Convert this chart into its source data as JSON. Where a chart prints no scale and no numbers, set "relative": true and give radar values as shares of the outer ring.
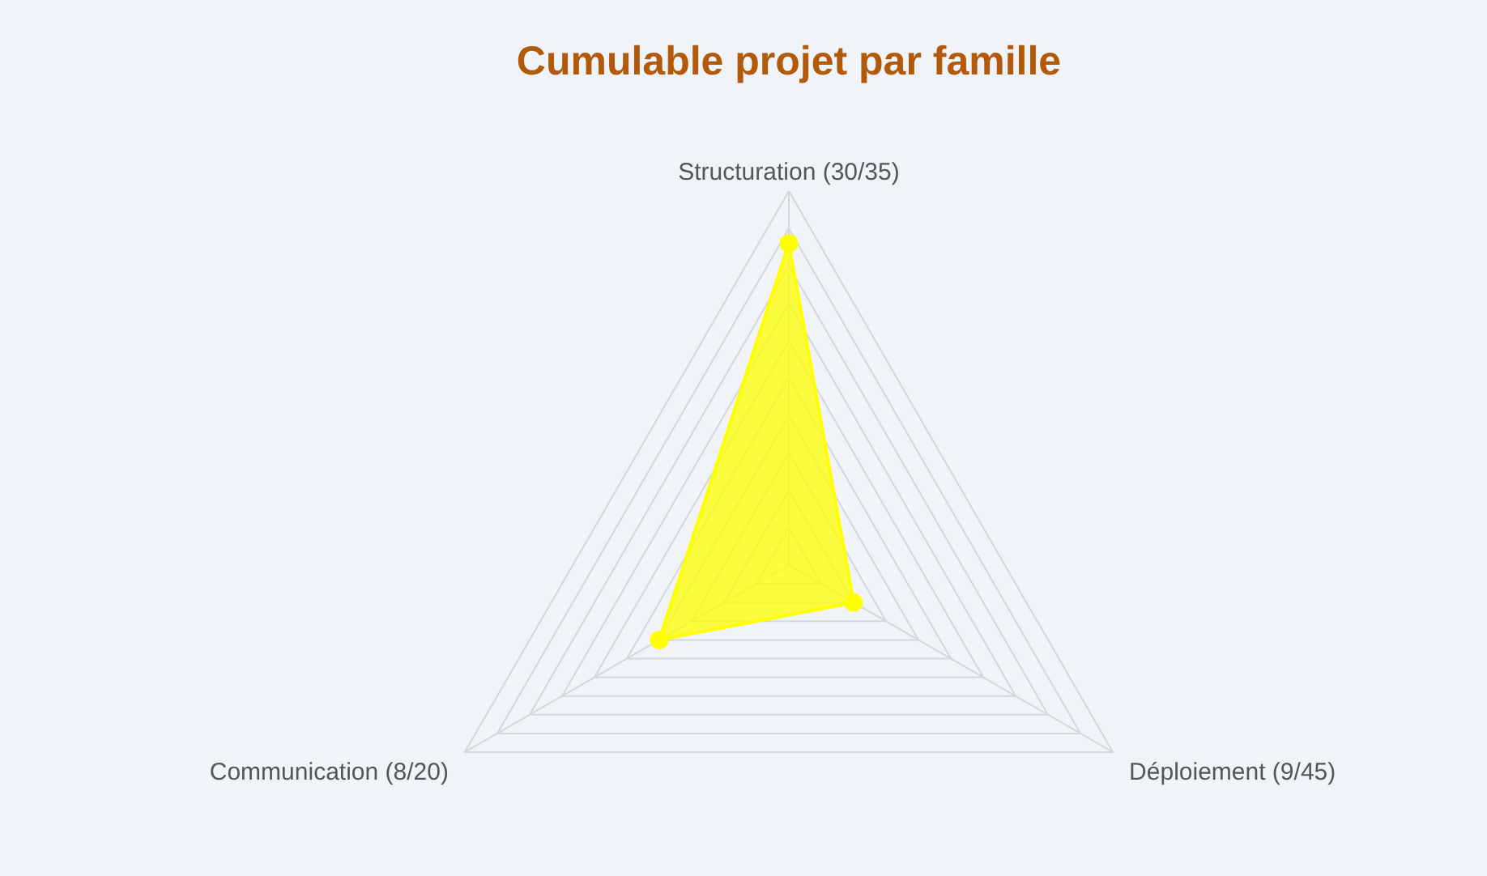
{
  "chart_data": {
    "type": "radar",
    "title": "Cumulable projet par famille",
    "categories": [
      "Structuration  (30/35)",
      "Déploiement (9/45)",
      "Communication (8/20)"
    ],
    "relative": true,
    "grid": true,
    "marker": "circle",
    "series": [
      {
        "color": "#ffff00",
        "values": [
          0.86,
          0.2,
          0.4
        ]
      }
    ]
  }
}
